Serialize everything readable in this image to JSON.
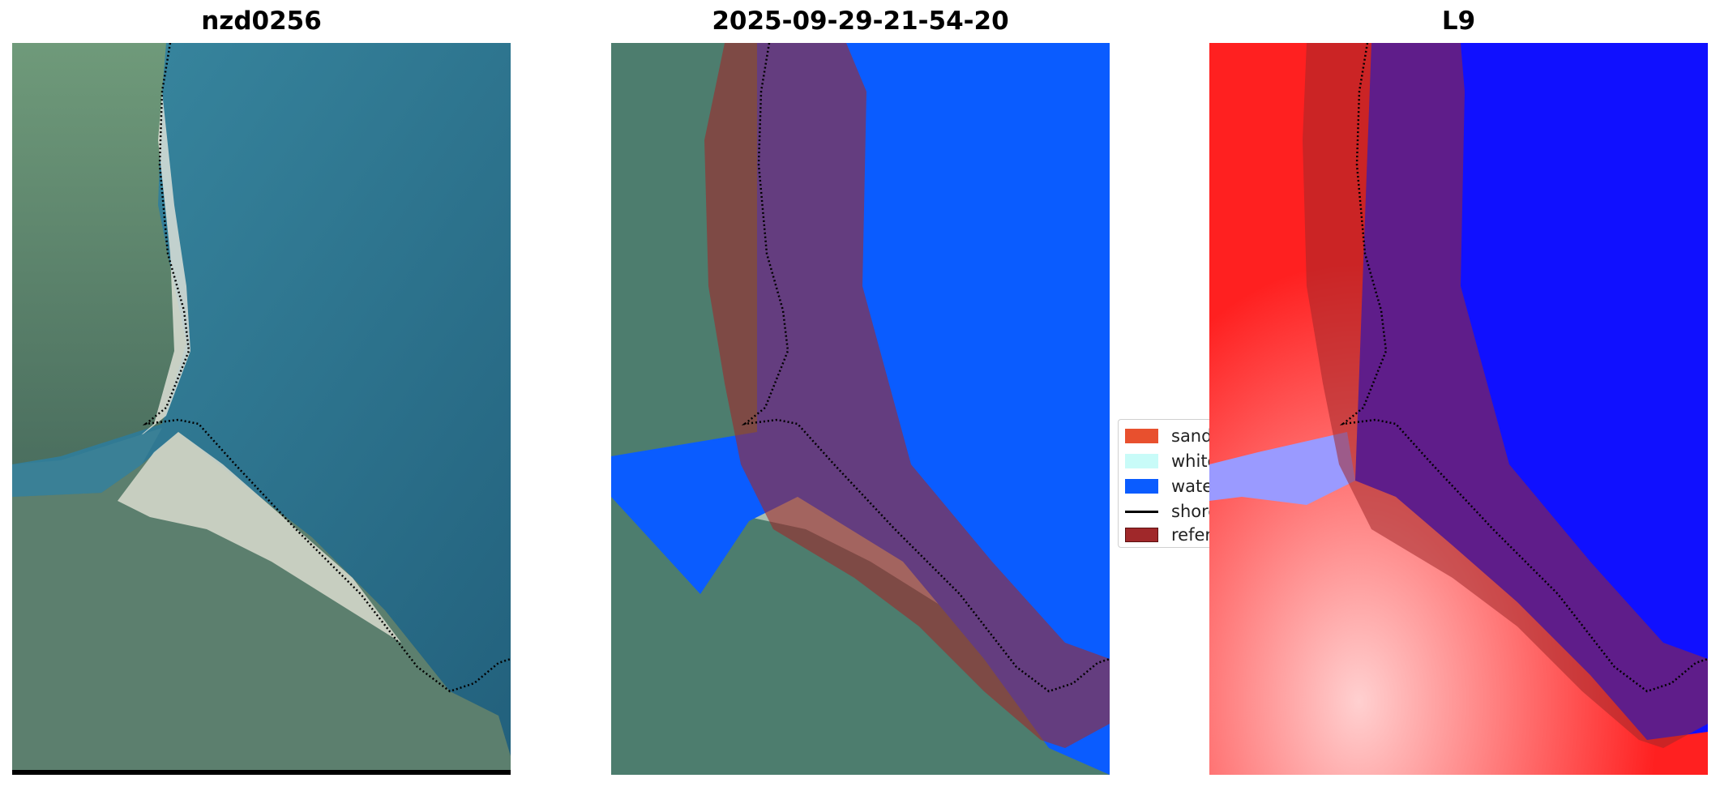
{
  "panels": [
    {
      "title": "nzd0256"
    },
    {
      "title": "2025-09-29-21-54-20"
    },
    {
      "title": "L9"
    }
  ],
  "legend": {
    "items": [
      {
        "label": "sand",
        "color": "#e8502e"
      },
      {
        "label": "white-water",
        "color": "#c8fbf8"
      },
      {
        "label": "water",
        "color": "#0a5cff"
      },
      {
        "label": "shoreline",
        "color": "#000000"
      },
      {
        "label": "reference shoreline buffer",
        "color": "#a0282a"
      }
    ]
  },
  "colors": {
    "water_rgb": "#2c6f8c",
    "land_rgb": "#5b8a6a",
    "water_class": "#0a5cff",
    "buffer": "#a0282a",
    "index_positive": "#ff2020",
    "index_negative": "#1010ff"
  }
}
